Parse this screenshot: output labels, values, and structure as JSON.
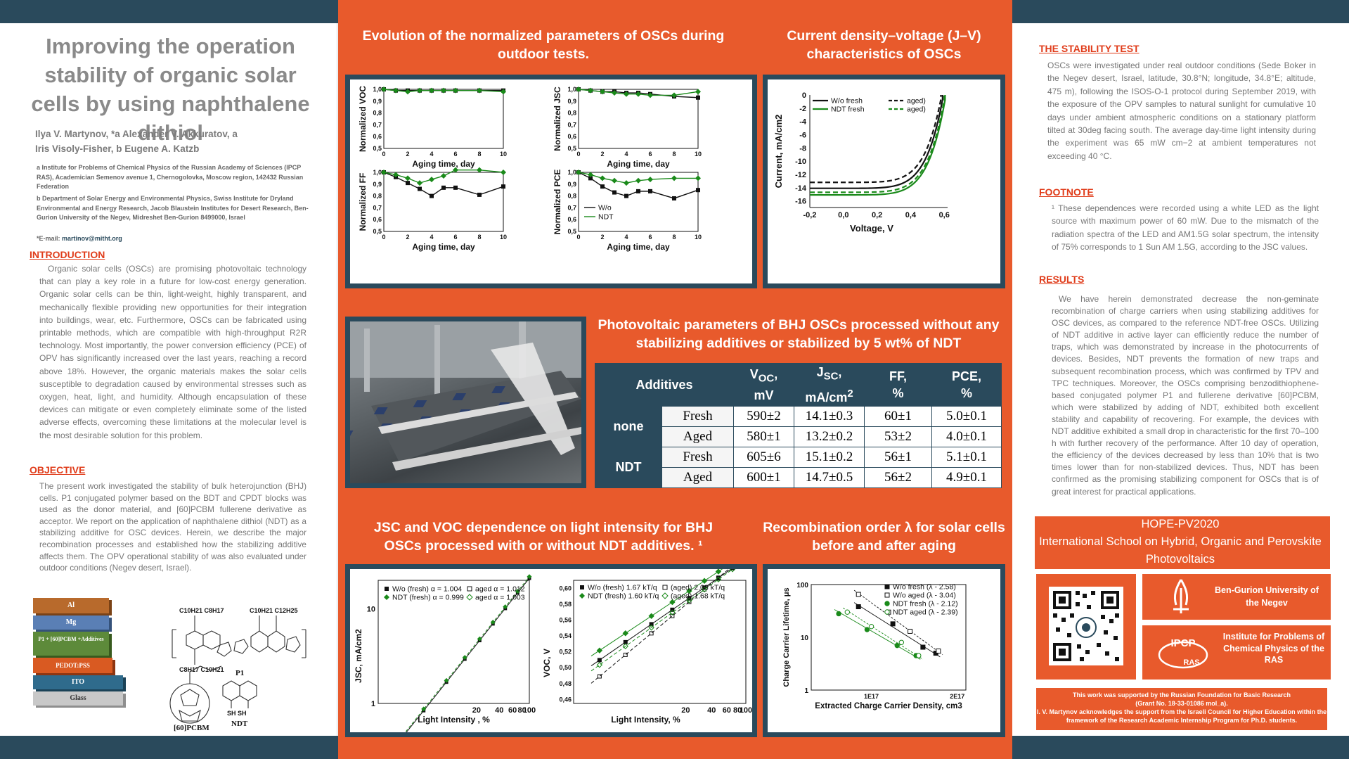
{
  "poster": {
    "title": "Improving the operation stability of organic solar cells by using naphthalene dithiol",
    "authors": [
      "Ilya V. Martynov, *a Alexander V. Akkuratov, a",
      "Iris Visoly-Fisher, b Eugene A. Katzb"
    ],
    "affiliations": [
      "a Institute for Problems of Chemical Physics of the Russian Academy of Sciences (IPCP RAS), Academician Semenov avenue 1, Chernogolovka, Moscow region, 142432 Russian Federation",
      "b Department of Solar Energy and Environmental Physics, Swiss Institute for Dryland Environmental and Energy Research, Jacob Blaustein Institutes for Desert Research, Ben-Gurion University of the Negev, Midreshet Ben-Gurion 8499000, Israel"
    ],
    "email_label": "*E-mail:",
    "email": "martinov@mitht.org"
  },
  "introduction": {
    "heading": "INTRODUCTION",
    "text": "Organic solar cells (OSCs) are promising photovoltaic technology that can play a key role in a future for low-cost energy generation. Organic solar cells can be thin, light-weight, highly transparent, and mechanically flexible providing new opportunities for their integration into buildings, wear, etc. Furthermore, OSCs can be fabricated using printable methods, which are compatible with high-throughput R2R technology. Most importantly, the power conversion efficiency (PCE) of OPV has significantly increased over the last years, reaching a record above 18%. However, the organic materials makes the solar cells susceptible to degradation caused by environmental stresses such as oxygen, heat, light, and humidity. Although encapsulation of these devices can mitigate or even completely eliminate some of the listed adverse effects, overcoming these limitations at the molecular level is the most desirable solution for this problem."
  },
  "objective": {
    "heading": "OBJECTIVE",
    "text": "The present work investigated the stability of bulk heterojunction (BHJ) cells. P1 conjugated polymer based on the BDT and CPDT blocks was used as the donor material, and [60]PCBM fullerene derivative as acceptor. We report on the application of naphthalene dithiol (NDT) as a stabilizing additive for OSC devices. Herein, we describe the major recombination processes and established how the stabilizing additive affects them. The OPV operational stability of was also evaluated under outdoor conditions (Negev desert, Israel)."
  },
  "device_stack": [
    "Al",
    "Mg",
    "P1 + [60]PCBM +Additives",
    "PEDOT:PSS",
    "ITO",
    "Glass"
  ],
  "molecules": {
    "p1": "P1",
    "pcbm": "[60]PCBM",
    "ndt": "NDT"
  },
  "panels": {
    "outdoor_title": "Evolution of the normalized parameters of OSCs during outdoor tests.",
    "jv_title": "Current density–voltage (J–V) characteristics of OSCs",
    "table_title": "Photovoltaic parameters of BHJ OSCs processed without any stabilizing additives or stabilized by 5 wt% of NDT",
    "light_title": "JSC and VOC dependence on light intensity for BHJ OSCs processed with or without NDT additives. ¹",
    "recomb_title": "Recombination order λ for solar cells before and after aging"
  },
  "colors": {
    "wo": "#111111",
    "ndt": "#1a8a1a",
    "accent": "#e85a2c",
    "navy": "#2a4a5c"
  },
  "chart_data": [
    {
      "type": "line",
      "name_label": "Normalized VOC",
      "x": [
        0,
        1,
        2,
        3,
        4,
        5,
        6,
        8,
        10
      ],
      "series": [
        {
          "name": "W/o",
          "values": [
            1.0,
            0.99,
            0.99,
            0.99,
            0.99,
            0.99,
            0.99,
            0.99,
            0.99
          ]
        },
        {
          "name": "NDT",
          "values": [
            1.0,
            0.99,
            0.98,
            0.99,
            0.99,
            0.99,
            0.99,
            0.99,
            0.98
          ]
        }
      ],
      "xlabel": "Aging time, day",
      "ylabel": "Normalized VOC",
      "ylim": [
        0.5,
        1.0
      ],
      "xlim": [
        0,
        10
      ],
      "yticks": [
        "0,5",
        "0,6",
        "0,7",
        "0,8",
        "0,9",
        "1,0"
      ],
      "xticks": [
        "0",
        "2",
        "4",
        "6",
        "8",
        "10"
      ]
    },
    {
      "type": "line",
      "name_label": "Normalized JSC",
      "x": [
        0,
        1,
        2,
        3,
        4,
        5,
        6,
        8,
        10
      ],
      "series": [
        {
          "name": "W/o",
          "values": [
            1.0,
            0.99,
            0.98,
            0.98,
            0.97,
            0.97,
            0.96,
            0.94,
            0.93
          ]
        },
        {
          "name": "NDT",
          "values": [
            1.0,
            0.99,
            0.98,
            0.97,
            0.96,
            0.96,
            0.95,
            0.95,
            0.98
          ]
        }
      ],
      "xlabel": "Aging time, day",
      "ylabel": "Normalized JSC",
      "ylim": [
        0.5,
        1.0
      ],
      "xlim": [
        0,
        10
      ],
      "yticks": [
        "0,5",
        "0,6",
        "0,7",
        "0,8",
        "0,9",
        "1,0"
      ],
      "xticks": [
        "0",
        "2",
        "4",
        "6",
        "8",
        "10"
      ]
    },
    {
      "type": "line",
      "name_label": "Normalized FF",
      "x": [
        0,
        1,
        2,
        3,
        4,
        5,
        6,
        8,
        10
      ],
      "series": [
        {
          "name": "W/o",
          "values": [
            1.0,
            0.96,
            0.91,
            0.86,
            0.8,
            0.87,
            0.87,
            0.81,
            0.88
          ]
        },
        {
          "name": "NDT",
          "values": [
            1.0,
            0.98,
            0.95,
            0.91,
            0.94,
            0.97,
            1.02,
            1.02,
            1.0
          ]
        }
      ],
      "xlabel": "Aging time, day",
      "ylabel": "Normalized FF",
      "ylim": [
        0.5,
        1.0
      ],
      "xlim": [
        0,
        10
      ],
      "yticks": [
        "0,5",
        "0,6",
        "0,7",
        "0,8",
        "0,9",
        "1,0"
      ],
      "xticks": [
        "0",
        "2",
        "4",
        "6",
        "8",
        "10"
      ]
    },
    {
      "type": "line",
      "name_label": "Normalized PCE",
      "x": [
        0,
        1,
        2,
        3,
        4,
        5,
        6,
        8,
        10
      ],
      "series": [
        {
          "name": "W/o",
          "values": [
            1.0,
            0.95,
            0.88,
            0.83,
            0.8,
            0.84,
            0.84,
            0.78,
            0.85
          ]
        },
        {
          "name": "NDT",
          "values": [
            1.0,
            0.98,
            0.95,
            0.93,
            0.91,
            0.93,
            0.94,
            0.95,
            0.95
          ]
        }
      ],
      "xlabel": "Aging time, day",
      "ylabel": "Normalized PCE",
      "ylim": [
        0.5,
        1.0
      ],
      "xlim": [
        0,
        10
      ],
      "yticks": [
        "0,5",
        "0,6",
        "0,7",
        "0,8",
        "0,9",
        "1,0"
      ],
      "xticks": [
        "0",
        "2",
        "4",
        "6",
        "8",
        "10"
      ],
      "legend": [
        "W/o",
        "NDT"
      ]
    },
    {
      "type": "line",
      "name_label": "J-V",
      "xlabel": "Voltage, V",
      "ylabel": "Current, mA/cm2",
      "xlim": [
        -0.2,
        0.62
      ],
      "ylim": [
        -17,
        0
      ],
      "xticks": [
        "-0,2",
        "0,0",
        "0,2",
        "0,4",
        "0,6"
      ],
      "yticks": [
        "0",
        "-2",
        "-4",
        "-6",
        "-8",
        "-10",
        "-12",
        "-14",
        "-16"
      ],
      "legend": [
        "W/o fresh",
        "NDT fresh",
        "aged)",
        "aged)"
      ],
      "series": [
        {
          "name": "W/o fresh",
          "jsc": -14.1,
          "voc": 0.59
        },
        {
          "name": "NDT fresh",
          "jsc": -15.1,
          "voc": 0.605
        },
        {
          "name": "aged)",
          "jsc": -13.2,
          "voc": 0.58
        },
        {
          "name": "aged)",
          "jsc": -14.7,
          "voc": 0.6
        }
      ]
    },
    {
      "type": "table",
      "name_label": "Photovoltaic parameters",
      "columns": [
        "Additives",
        "VOC, mV",
        "JSC, mA/cm2",
        "FF, %",
        "PCE, %"
      ],
      "rows": [
        {
          "group": "none",
          "cond": "Fresh",
          "voc": "590±2",
          "jsc": "14.1±0.3",
          "ff": "60±1",
          "pce": "5.0±0.1"
        },
        {
          "group": "none",
          "cond": "Aged",
          "voc": "580±1",
          "jsc": "13.2±0.2",
          "ff": "53±2",
          "pce": "4.0±0.1"
        },
        {
          "group": "NDT",
          "cond": "Fresh",
          "voc": "605±6",
          "jsc": "15.1±0.2",
          "ff": "56±1",
          "pce": "5.1±0.1"
        },
        {
          "group": "NDT",
          "cond": "Aged",
          "voc": "600±1",
          "jsc": "14.7±0.5",
          "ff": "56±2",
          "pce": "4.9±0.1"
        }
      ]
    },
    {
      "type": "scatter",
      "name_label": "JSC vs light intensity",
      "xlabel": "Light Intensity , %",
      "ylabel": "JSC, mA/cm2",
      "xticks": [
        "20",
        "40",
        "60",
        "80",
        "100"
      ],
      "yticks": [
        "1",
        "10"
      ],
      "legend": [
        "W/o (fresh) α = 1.004",
        "NDT (fresh) α = 0.999",
        "aged α = 1.012",
        "aged α = 1.003"
      ],
      "x": [
        1,
        2,
        4,
        8,
        14,
        22,
        33,
        48,
        70,
        100
      ]
    },
    {
      "type": "scatter",
      "name_label": "VOC vs light intensity",
      "xlabel": "Light Intensity, %",
      "ylabel": "VOC, V",
      "yticks": [
        "0,46",
        "0,48",
        "0,50",
        "0,52",
        "0,54",
        "0,56",
        "0,58",
        "0,60"
      ],
      "xticks": [
        "20",
        "40",
        "60",
        "80",
        "100"
      ],
      "legend": [
        "W/o (fresh) 1.67 kT/q",
        "NDT (fresh) 1.60 kT/q",
        "(aged) 2.03 kT/q",
        "(aged) 1.68 kT/q"
      ]
    },
    {
      "type": "scatter",
      "name_label": "Recombination order",
      "xlabel": "Extracted Charge Carrier Density, cm3",
      "ylabel": "Charge Carrier Lifetime, μs",
      "xticks": [
        "1E17",
        "2E17"
      ],
      "yticks": [
        "1",
        "10",
        "100"
      ],
      "legend": [
        "W/o fresh (λ - 2.58)",
        "W/o aged (λ - 3.04)",
        "NDT  fresh (λ - 2.12)",
        "NDT  aged (λ - 2.39)"
      ]
    }
  ],
  "stability": {
    "heading": "THE STABILITY TEST",
    "text": "OSCs were investigated under real outdoor conditions (Sede Boker in the Negev desert, Israel, latitude, 30.8°N; longitude, 34.8°E; altitude, 475 m), following the ISOS-O-1 protocol during September 2019, with the exposure of the OPV samples to natural sunlight for cumulative 10 days under ambient atmospheric conditions on a stationary platform tilted at 30deg facing south. The average day-time light intensity during the experiment was 65 mW cm−2 at ambient temperatures not exceeding 40 °C."
  },
  "footnote": {
    "heading": "FOOTNOTE",
    "text": "¹ These dependences were recorded using a white LED as the light source with maximum power of 60 mW. Due to the mismatch of the radiation spectra of the LED and AM1.5G solar spectrum, the intensity of 75% corresponds to 1 Sun AM 1.5G, according to the JSC values."
  },
  "results": {
    "heading": "RESULTS",
    "text": "We have herein demonstrated decrease the non-geminate recombination of charge carriers when using stabilizing additives for OSC devices, as compared to the reference NDT-free OSCs. Utilizing of NDT additive in active layer can efficiently reduce the number of traps, which was demonstrated by increase in the photocurrents of devices. Besides, NDT prevents the formation of new traps and subsequent recombination process, which was confirmed by TPV and TPC techniques. Moreover, the OSCs comprising benzodithiophene-based conjugated polymer P1 and fullerene derivative [60]PCBM, which were stabilized by adding of NDT, exhibited both excellent stability and capability of recovering. For example, the devices with NDT additive exhibited a small drop in characteristic for the first 70–100 h with further recovery of the performance. After 10 day of operation, the efficiency of the devices decreased by less than 10% that is two times lower than for non-stabilized devices. Thus, NDT has been confirmed as the promising stabilizing component for OSCs that is of great interest for practical applications."
  },
  "school": {
    "code": "HOPE-PV2020",
    "name": "International School on Hybrid, Organic and Perovskite Photovoltaics",
    "bgu": "Ben-Gurion University of the Negev",
    "ipcp": "Institute for Problems of Chemical Physics of the RAS",
    "ipcp_logo": "IPCP",
    "ipcp_logo_sub": "RAS"
  },
  "acknowledgement": {
    "line1": "This work was supported by the Russian Foundation for Basic Research",
    "line2": "(Grant No. 18-33-01086 mol_a).",
    "line3": "I. V. Martynov acknowledges the support from the Israeli Council for Higher Education within the framework of the Research Academic Internship Program for Ph.D. students."
  }
}
